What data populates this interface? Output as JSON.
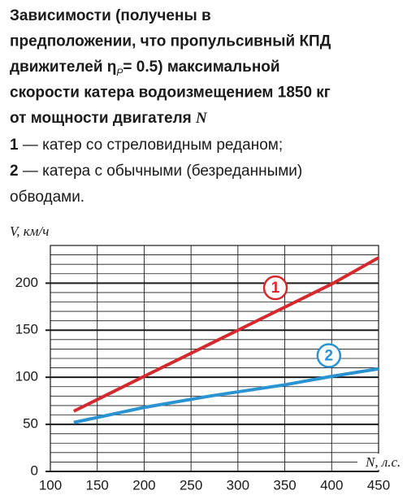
{
  "chart_data": {
    "type": "line",
    "title_lines": [
      [
        "Зависимости (получены в"
      ],
      [
        "предположении, что пропульсивный КПД"
      ],
      [
        "движителей η",
        "P",
        "= 0.5) максимальной"
      ],
      [
        "скорости катера водоизмещением 1850 кг"
      ],
      [
        "от мощности двигателя ",
        "N"
      ]
    ],
    "notes": [
      [
        "1",
        " — катер со стреловидным реданом;"
      ],
      [
        "2",
        " — катера с обычными (безреданными)"
      ],
      [
        "обводами."
      ]
    ],
    "x_label": "N, л.с.",
    "y_label": "V, км/ч",
    "xlim": [
      100,
      450
    ],
    "xticks": [
      100,
      150,
      200,
      250,
      300,
      350,
      400,
      450
    ],
    "ylim": [
      0,
      240
    ],
    "yticks": [
      0,
      50,
      100,
      150,
      200
    ],
    "y_minor_ticks": [
      10,
      20,
      30,
      40,
      60,
      70,
      80,
      90,
      110,
      120,
      130,
      140,
      160,
      170,
      180,
      190,
      210,
      220,
      230
    ],
    "grid": true,
    "series": [
      {
        "name": "1",
        "color": "#d42a2e",
        "x": [
          125,
          200,
          300,
          400,
          450
        ],
        "values": [
          64,
          101,
          150,
          199,
          227
        ],
        "label_at": [
          340,
          195
        ]
      },
      {
        "name": "2",
        "color": "#2b93d1",
        "x": [
          125,
          200,
          270,
          350,
          400,
          450
        ],
        "values": [
          52,
          68,
          80,
          92,
          101,
          109
        ],
        "label_at": [
          397,
          123
        ]
      }
    ]
  }
}
